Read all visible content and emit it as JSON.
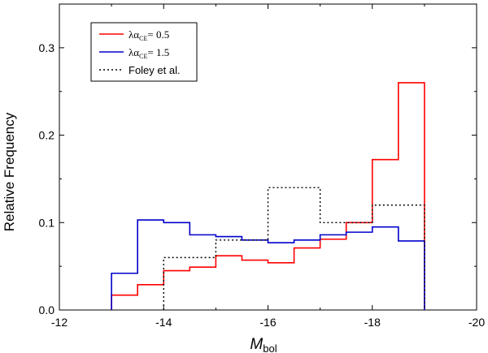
{
  "chart_data": {
    "type": "line",
    "style": "step-histogram",
    "title": "",
    "xlabel": "M",
    "xlabel_sub": "bol",
    "ylabel": "Relative Frequency",
    "xlim": [
      -12,
      -20
    ],
    "ylim": [
      0,
      0.35
    ],
    "x_ticks": [
      -12,
      -14,
      -16,
      -18,
      -20
    ],
    "x_tick_labels": [
      "-12",
      "-14",
      "-16",
      "-18",
      "-20"
    ],
    "y_ticks": [
      0.0,
      0.1,
      0.2,
      0.3
    ],
    "y_tick_labels": [
      "0.0",
      "0.1",
      "0.2",
      "0.3"
    ],
    "legend_position": "top-left",
    "series": [
      {
        "name": "λα_CE = 0.5",
        "legend_prefix": "λα",
        "legend_sub": "CE",
        "legend_suffix": "= 0.5",
        "color": "#ff0000",
        "dash": "solid",
        "bin_edges": [
          -13,
          -13.5,
          -14,
          -14.5,
          -15,
          -15.5,
          -16,
          -16.5,
          -17,
          -17.5,
          -18,
          -18.5,
          -19
        ],
        "values": [
          0.017,
          0.029,
          0.045,
          0.049,
          0.062,
          0.057,
          0.054,
          0.071,
          0.081,
          0.1,
          0.172,
          0.26
        ]
      },
      {
        "name": "λα_CE = 1.5",
        "legend_prefix": "λα",
        "legend_sub": "CE",
        "legend_suffix": "= 1.5",
        "color": "#0000cc",
        "dash": "solid",
        "bin_edges": [
          -13,
          -13.5,
          -14,
          -14.5,
          -15,
          -15.5,
          -16,
          -16.5,
          -17,
          -17.5,
          -18,
          -18.5,
          -19
        ],
        "values": [
          0.042,
          0.103,
          0.1,
          0.086,
          0.084,
          0.08,
          0.077,
          0.08,
          0.086,
          0.089,
          0.095,
          0.079
        ]
      },
      {
        "name": "Foley et al.",
        "legend_prefix": "Foley et al.",
        "legend_sub": "",
        "legend_suffix": "",
        "color": "#000000",
        "dash": "dotted",
        "bin_edges": [
          -14,
          -15,
          -16,
          -17,
          -18,
          -19
        ],
        "values": [
          0.06,
          0.08,
          0.14,
          0.1,
          0.12
        ]
      }
    ]
  }
}
